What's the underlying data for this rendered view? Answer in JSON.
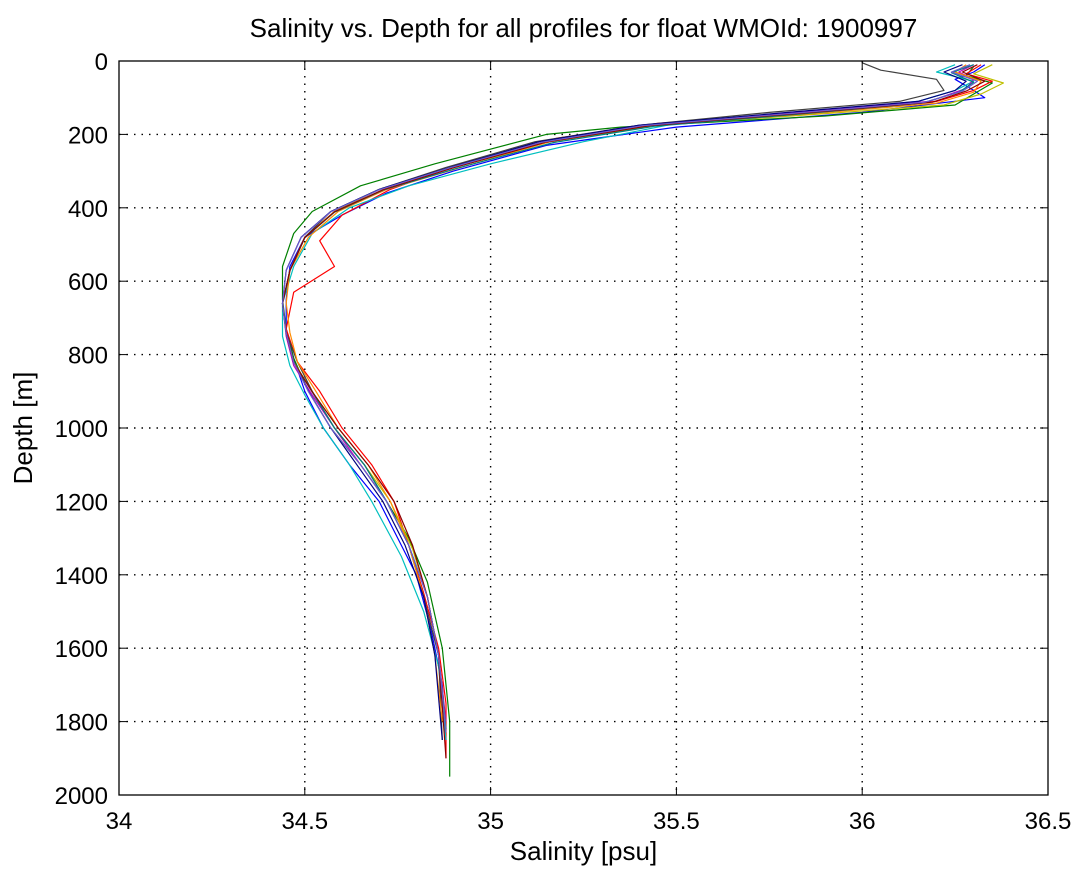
{
  "chart_data": {
    "type": "line",
    "title": "Salinity vs. Depth for all profiles for float WMOId: 1900997",
    "xlabel": "Salinity [psu]",
    "ylabel": "Depth [m]",
    "xlim": [
      34,
      36.5
    ],
    "ylim": [
      0,
      2000
    ],
    "y_reversed": true,
    "grid": true,
    "x_ticks": [
      "34",
      "34.5",
      "35",
      "35.5",
      "36",
      "36.5"
    ],
    "y_ticks": [
      "0",
      "200",
      "400",
      "600",
      "800",
      "1000",
      "1200",
      "1400",
      "1600",
      "1800",
      "2000"
    ],
    "series": [
      {
        "color": "#0000ff",
        "x": [
          36.33,
          36.3,
          36.25,
          36.3,
          36.33,
          36.0,
          35.5,
          35.15,
          34.9,
          34.72,
          34.6,
          34.5,
          34.46,
          34.45,
          34.45,
          34.47,
          34.5,
          34.55,
          34.62,
          34.7,
          34.75,
          34.8,
          34.84,
          34.87,
          34.88
        ],
        "y": [
          10,
          30,
          50,
          80,
          100,
          140,
          180,
          230,
          300,
          360,
          420,
          480,
          560,
          650,
          730,
          810,
          900,
          1000,
          1100,
          1200,
          1300,
          1400,
          1550,
          1700,
          1850
        ]
      },
      {
        "color": "#008000",
        "x": [
          36.3,
          36.28,
          36.35,
          36.3,
          36.25,
          35.9,
          35.35,
          35.15,
          34.85,
          34.65,
          34.52,
          34.47,
          34.44,
          34.44,
          34.45,
          34.47,
          34.51,
          34.57,
          34.65,
          34.72,
          34.78,
          34.83,
          34.87,
          34.89,
          34.89
        ],
        "y": [
          15,
          40,
          60,
          90,
          120,
          150,
          180,
          200,
          280,
          340,
          410,
          470,
          560,
          650,
          730,
          810,
          900,
          1000,
          1100,
          1200,
          1300,
          1420,
          1600,
          1800,
          1950
        ]
      },
      {
        "color": "#ff0000",
        "x": [
          36.32,
          36.28,
          36.35,
          36.3,
          36.2,
          35.85,
          35.45,
          35.18,
          34.92,
          34.73,
          34.6,
          34.54,
          34.58,
          34.47,
          34.45,
          34.48,
          34.54,
          34.6,
          34.68,
          34.74,
          34.78,
          34.82,
          34.86,
          34.88,
          34.88
        ],
        "y": [
          10,
          35,
          55,
          80,
          110,
          140,
          170,
          210,
          280,
          350,
          420,
          490,
          560,
          630,
          730,
          820,
          900,
          1000,
          1100,
          1200,
          1320,
          1450,
          1600,
          1750,
          1900
        ]
      },
      {
        "color": "#00bfbf",
        "x": [
          36.25,
          36.2,
          36.3,
          36.25,
          36.15,
          35.85,
          35.5,
          35.25,
          35.0,
          34.78,
          34.62,
          34.52,
          34.47,
          34.44,
          34.44,
          34.46,
          34.5,
          34.55,
          34.62,
          34.68,
          34.76,
          34.82,
          34.86,
          34.88
        ],
        "y": [
          10,
          30,
          55,
          80,
          110,
          140,
          170,
          220,
          280,
          340,
          400,
          470,
          560,
          660,
          750,
          830,
          910,
          1000,
          1100,
          1200,
          1350,
          1500,
          1650,
          1850
        ]
      },
      {
        "color": "#bf00bf",
        "x": [
          36.3,
          36.26,
          36.3,
          36.28,
          36.18,
          35.82,
          35.42,
          35.15,
          34.9,
          34.72,
          34.58,
          34.5,
          34.46,
          34.44,
          34.45,
          34.47,
          34.52,
          34.58,
          34.65,
          34.72,
          34.78,
          34.83,
          34.86,
          34.88
        ],
        "y": [
          10,
          30,
          50,
          75,
          110,
          140,
          175,
          220,
          290,
          350,
          410,
          480,
          570,
          660,
          750,
          830,
          910,
          1000,
          1100,
          1200,
          1320,
          1460,
          1620,
          1800
        ]
      },
      {
        "color": "#bfbf00",
        "x": [
          36.35,
          36.3,
          36.38,
          36.32,
          36.22,
          35.88,
          35.45,
          35.16,
          34.9,
          34.7,
          34.58,
          34.5,
          34.46,
          34.44,
          34.45,
          34.47,
          34.52,
          34.58,
          34.66,
          34.73,
          34.79,
          34.83,
          34.86,
          34.88
        ],
        "y": [
          10,
          35,
          60,
          90,
          120,
          145,
          175,
          220,
          290,
          350,
          410,
          480,
          570,
          660,
          740,
          820,
          900,
          1000,
          1100,
          1200,
          1330,
          1460,
          1620,
          1820
        ]
      },
      {
        "color": "#404040",
        "x": [
          36.0,
          36.05,
          36.2,
          36.22,
          36.1,
          35.75,
          35.4,
          35.12,
          34.88,
          34.7,
          34.57,
          34.5,
          34.46,
          34.44,
          34.45,
          34.48,
          34.52,
          34.58,
          34.66,
          34.72,
          34.78,
          34.82,
          34.86,
          34.87
        ],
        "y": [
          5,
          25,
          50,
          80,
          110,
          140,
          175,
          220,
          290,
          350,
          410,
          480,
          570,
          660,
          740,
          820,
          900,
          1000,
          1100,
          1200,
          1320,
          1460,
          1620,
          1850
        ]
      },
      {
        "color": "#ff8c00",
        "x": [
          36.28,
          36.25,
          36.32,
          36.3,
          36.2,
          35.85,
          35.43,
          35.16,
          34.92,
          34.72,
          34.59,
          34.51,
          34.46,
          34.45,
          34.46,
          34.48,
          34.53,
          34.59,
          34.67,
          34.73,
          34.78,
          34.82,
          34.85,
          34.87
        ],
        "y": [
          10,
          30,
          55,
          85,
          115,
          145,
          175,
          220,
          290,
          350,
          410,
          480,
          570,
          660,
          740,
          820,
          900,
          1000,
          1100,
          1200,
          1320,
          1460,
          1620,
          1800
        ]
      },
      {
        "color": "#000080",
        "x": [
          36.27,
          36.22,
          36.28,
          36.25,
          36.15,
          35.8,
          35.4,
          35.13,
          34.89,
          34.7,
          34.57,
          34.49,
          34.45,
          34.44,
          34.45,
          34.47,
          34.51,
          34.57,
          34.64,
          34.71,
          34.77,
          34.82,
          34.85,
          34.87
        ],
        "y": [
          10,
          30,
          55,
          80,
          110,
          140,
          175,
          220,
          290,
          350,
          410,
          480,
          570,
          660,
          740,
          820,
          900,
          1000,
          1100,
          1200,
          1320,
          1460,
          1620,
          1850
        ]
      },
      {
        "color": "#008080",
        "x": [
          36.3,
          36.24,
          36.3,
          36.26,
          36.16,
          35.83,
          35.44,
          35.17,
          34.91,
          34.71,
          34.58,
          34.5,
          34.46,
          34.44,
          34.45,
          34.47,
          34.52,
          34.58,
          34.66,
          34.72,
          34.78,
          34.83,
          34.86,
          34.88
        ],
        "y": [
          10,
          32,
          58,
          85,
          115,
          145,
          178,
          222,
          292,
          352,
          412,
          482,
          572,
          662,
          742,
          822,
          902,
          1000,
          1100,
          1200,
          1320,
          1460,
          1620,
          1820
        ]
      },
      {
        "color": "#8b0000",
        "x": [
          36.31,
          36.27,
          36.33,
          36.28,
          36.19,
          35.84,
          35.43,
          35.15,
          34.9,
          34.71,
          34.58,
          34.5,
          34.46,
          34.44,
          34.45,
          34.47,
          34.52,
          34.59,
          34.67,
          34.74,
          34.79,
          34.83,
          34.86,
          34.88
        ],
        "y": [
          10,
          30,
          55,
          82,
          112,
          142,
          176,
          221,
          291,
          351,
          411,
          481,
          571,
          661,
          741,
          821,
          901,
          1000,
          1100,
          1200,
          1320,
          1460,
          1620,
          1900
        ]
      },
      {
        "color": "#6a5acd",
        "x": [
          36.29,
          36.24,
          36.31,
          36.27,
          36.17,
          35.82,
          35.41,
          35.14,
          34.89,
          34.7,
          34.57,
          34.49,
          34.45,
          34.44,
          34.45,
          34.47,
          34.51,
          34.57,
          34.65,
          34.72,
          34.78,
          34.83,
          34.86,
          34.88
        ],
        "y": [
          10,
          30,
          55,
          82,
          112,
          142,
          176,
          221,
          291,
          351,
          411,
          481,
          571,
          661,
          741,
          821,
          901,
          1000,
          1100,
          1200,
          1320,
          1460,
          1620,
          1830
        ]
      }
    ]
  }
}
